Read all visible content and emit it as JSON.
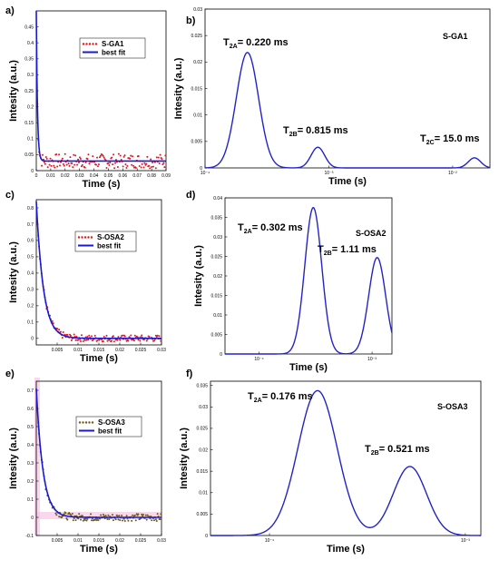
{
  "panel_labels": [
    "a)",
    "b)",
    "c)",
    "d)",
    "e)",
    "f)"
  ],
  "colors": {
    "data_red": "#e8161a",
    "fit_blue": "#1a1ad6",
    "dist_blue": "#2323c8",
    "axis": "#000000",
    "band_pink": "#f7c8e6",
    "data_olive": "#6b5e10"
  },
  "chart_data": [
    {
      "id": "a",
      "type": "scatter",
      "xlabel": "Time (s)",
      "ylabel": "Intesity (a.u.)",
      "xlim": [
        0,
        0.09
      ],
      "ylim": [
        0,
        0.5
      ],
      "xticks": [
        0,
        0.01,
        0.02,
        0.03,
        0.04,
        0.05,
        0.06,
        0.07,
        0.08,
        0.09
      ],
      "xtick_labels": [
        "0",
        "0.01",
        "0.02",
        "0.03",
        "0.04",
        "0.05",
        "0.06",
        "0.07",
        "0.08",
        "0.09"
      ],
      "yticks": [
        0,
        0.05,
        0.1,
        0.15,
        0.2,
        0.25,
        0.3,
        0.35,
        0.4,
        0.45
      ],
      "ytick_labels": [
        "0",
        "0.05",
        "0.1",
        "0.15",
        "0.2",
        "0.25",
        "0.3",
        "0.35",
        "0.4",
        "0.45"
      ],
      "fit": {
        "amplitude": 0.47,
        "tau": 0.0008,
        "offset": 0.03
      },
      "legend": [
        {
          "label": "S-GA1",
          "style": "dots",
          "color": "#e8161a"
        },
        {
          "label": "best fit",
          "style": "line",
          "color": "#1a1ad6"
        }
      ]
    },
    {
      "id": "b",
      "type": "line",
      "xlabel": "Time (s)",
      "ylabel": "Intesity (a.u.)",
      "xscale": "log",
      "xlim": [
        0.0001,
        0.02
      ],
      "ylim": [
        0,
        0.03
      ],
      "xticks": [
        0.0001,
        0.001,
        0.01
      ],
      "xtick_labels": [
        "10⁻⁴",
        "10⁻³",
        "10⁻²"
      ],
      "yticks": [
        0,
        0.005,
        0.01,
        0.015,
        0.02,
        0.025,
        0.03
      ],
      "ytick_labels": [
        "0",
        "0.005",
        "0.01",
        "0.015",
        "0.02",
        "0.025",
        "0.03"
      ],
      "sample_label": "S-GA1",
      "peaks": [
        {
          "center": 0.00022,
          "height": 0.0218,
          "width": 0.09,
          "label_main": "T",
          "label_sub": "2A",
          "label_value": "= 0.220 ms"
        },
        {
          "center": 0.000815,
          "height": 0.0039,
          "width": 0.055,
          "label_main": "T",
          "label_sub": "2B",
          "label_value": "= 0.815 ms"
        },
        {
          "center": 0.015,
          "height": 0.0019,
          "width": 0.05,
          "label_main": "T",
          "label_sub": "2C",
          "label_value": "= 15.0 ms"
        }
      ]
    },
    {
      "id": "c",
      "type": "scatter",
      "xlabel": "Time (s)",
      "ylabel": "Intesity (a.u.)",
      "xlim": [
        0,
        0.03
      ],
      "ylim": [
        -0.04,
        0.85
      ],
      "xticks": [
        0.005,
        0.01,
        0.015,
        0.02,
        0.025,
        0.03
      ],
      "xtick_labels": [
        "0.005",
        "0.01",
        "0.015",
        "0.02",
        "0.025",
        "0.03"
      ],
      "yticks": [
        0,
        0.1,
        0.2,
        0.3,
        0.4,
        0.5,
        0.6,
        0.7,
        0.8
      ],
      "ytick_labels": [
        "0",
        "0.1",
        "0.2",
        "0.3",
        "0.4",
        "0.5",
        "0.6",
        "0.7",
        "0.8"
      ],
      "fit": {
        "amplitude": 0.84,
        "tau": 0.0017,
        "offset": 0.0
      },
      "legend": [
        {
          "label": "S-OSA2",
          "style": "dots",
          "color": "#e8161a"
        },
        {
          "label": "best fit",
          "style": "line",
          "color": "#1a1ad6"
        }
      ]
    },
    {
      "id": "d",
      "type": "line",
      "xlabel": "Time (s)",
      "ylabel": "Intesity (a.u.)",
      "xscale": "log",
      "xlim": [
        5e-05,
        0.0015
      ],
      "ylim": [
        0,
        0.04
      ],
      "xticks": [
        0.0001,
        0.001
      ],
      "xtick_labels": [
        "10⁻⁴",
        "10⁻³"
      ],
      "yticks": [
        0,
        0.005,
        0.01,
        0.015,
        0.02,
        0.025,
        0.03,
        0.035,
        0.04
      ],
      "ytick_labels": [
        "0",
        "0.005",
        "0.01",
        "0.015",
        "0.02",
        "0.025",
        "0.03",
        "0.035",
        "0.04"
      ],
      "sample_label": "S-OSA2",
      "peaks": [
        {
          "center": 0.000302,
          "height": 0.0375,
          "width": 0.075,
          "label_main": "T",
          "label_sub": "2A",
          "label_value": "= 0.302 ms"
        },
        {
          "center": 0.00111,
          "height": 0.0247,
          "width": 0.075,
          "label_main": "T",
          "label_sub": "2B",
          "label_value": "= 1.11 ms"
        }
      ]
    },
    {
      "id": "e",
      "type": "scatter",
      "xlabel": "Time (s)",
      "ylabel": "Intesity (a.u.)",
      "xlim": [
        0,
        0.03
      ],
      "ylim": [
        -0.1,
        0.75
      ],
      "xticks": [
        0.005,
        0.01,
        0.015,
        0.02,
        0.025,
        0.03
      ],
      "xtick_labels": [
        "0.005",
        "0.01",
        "0.015",
        "0.02",
        "0.025",
        "0.03"
      ],
      "yticks": [
        -0.1,
        0,
        0.1,
        0.2,
        0.3,
        0.4,
        0.5,
        0.6,
        0.7
      ],
      "ytick_labels": [
        "-0.1",
        "0",
        "0.1",
        "0.2",
        "0.3",
        "0.4",
        "0.5",
        "0.6",
        "0.7"
      ],
      "fit": {
        "amplitude": 0.71,
        "tau": 0.0016,
        "offset": 0.0
      },
      "legend": [
        {
          "label": "S-OSA3",
          "style": "dots",
          "color": "#6b5e10"
        },
        {
          "label": "best fit",
          "style": "line",
          "color": "#1a1ad6"
        }
      ]
    },
    {
      "id": "f",
      "type": "line",
      "xlabel": "Time (s)",
      "ylabel": "Intesity (a.u.)",
      "xscale": "log",
      "xlim": [
        5e-05,
        0.0012
      ],
      "ylim": [
        0,
        0.036
      ],
      "xticks": [
        0.0001,
        0.001
      ],
      "xtick_labels": [
        "10⁻⁴",
        "10⁻³"
      ],
      "yticks": [
        0,
        0.005,
        0.01,
        0.015,
        0.02,
        0.025,
        0.03,
        0.035
      ],
      "ytick_labels": [
        "0",
        "0.005",
        "0.01",
        "0.015",
        "0.02",
        "0.025",
        "0.03",
        "0.035"
      ],
      "sample_label": "S-OSA3",
      "peaks": [
        {
          "center": 0.000176,
          "height": 0.0338,
          "width": 0.1,
          "label_main": "T",
          "label_sub": "2A",
          "label_value": "= 0.176 ms"
        },
        {
          "center": 0.000521,
          "height": 0.0161,
          "width": 0.085,
          "label_main": "T",
          "label_sub": "2B",
          "label_value": "= 0.521 ms"
        }
      ]
    }
  ]
}
